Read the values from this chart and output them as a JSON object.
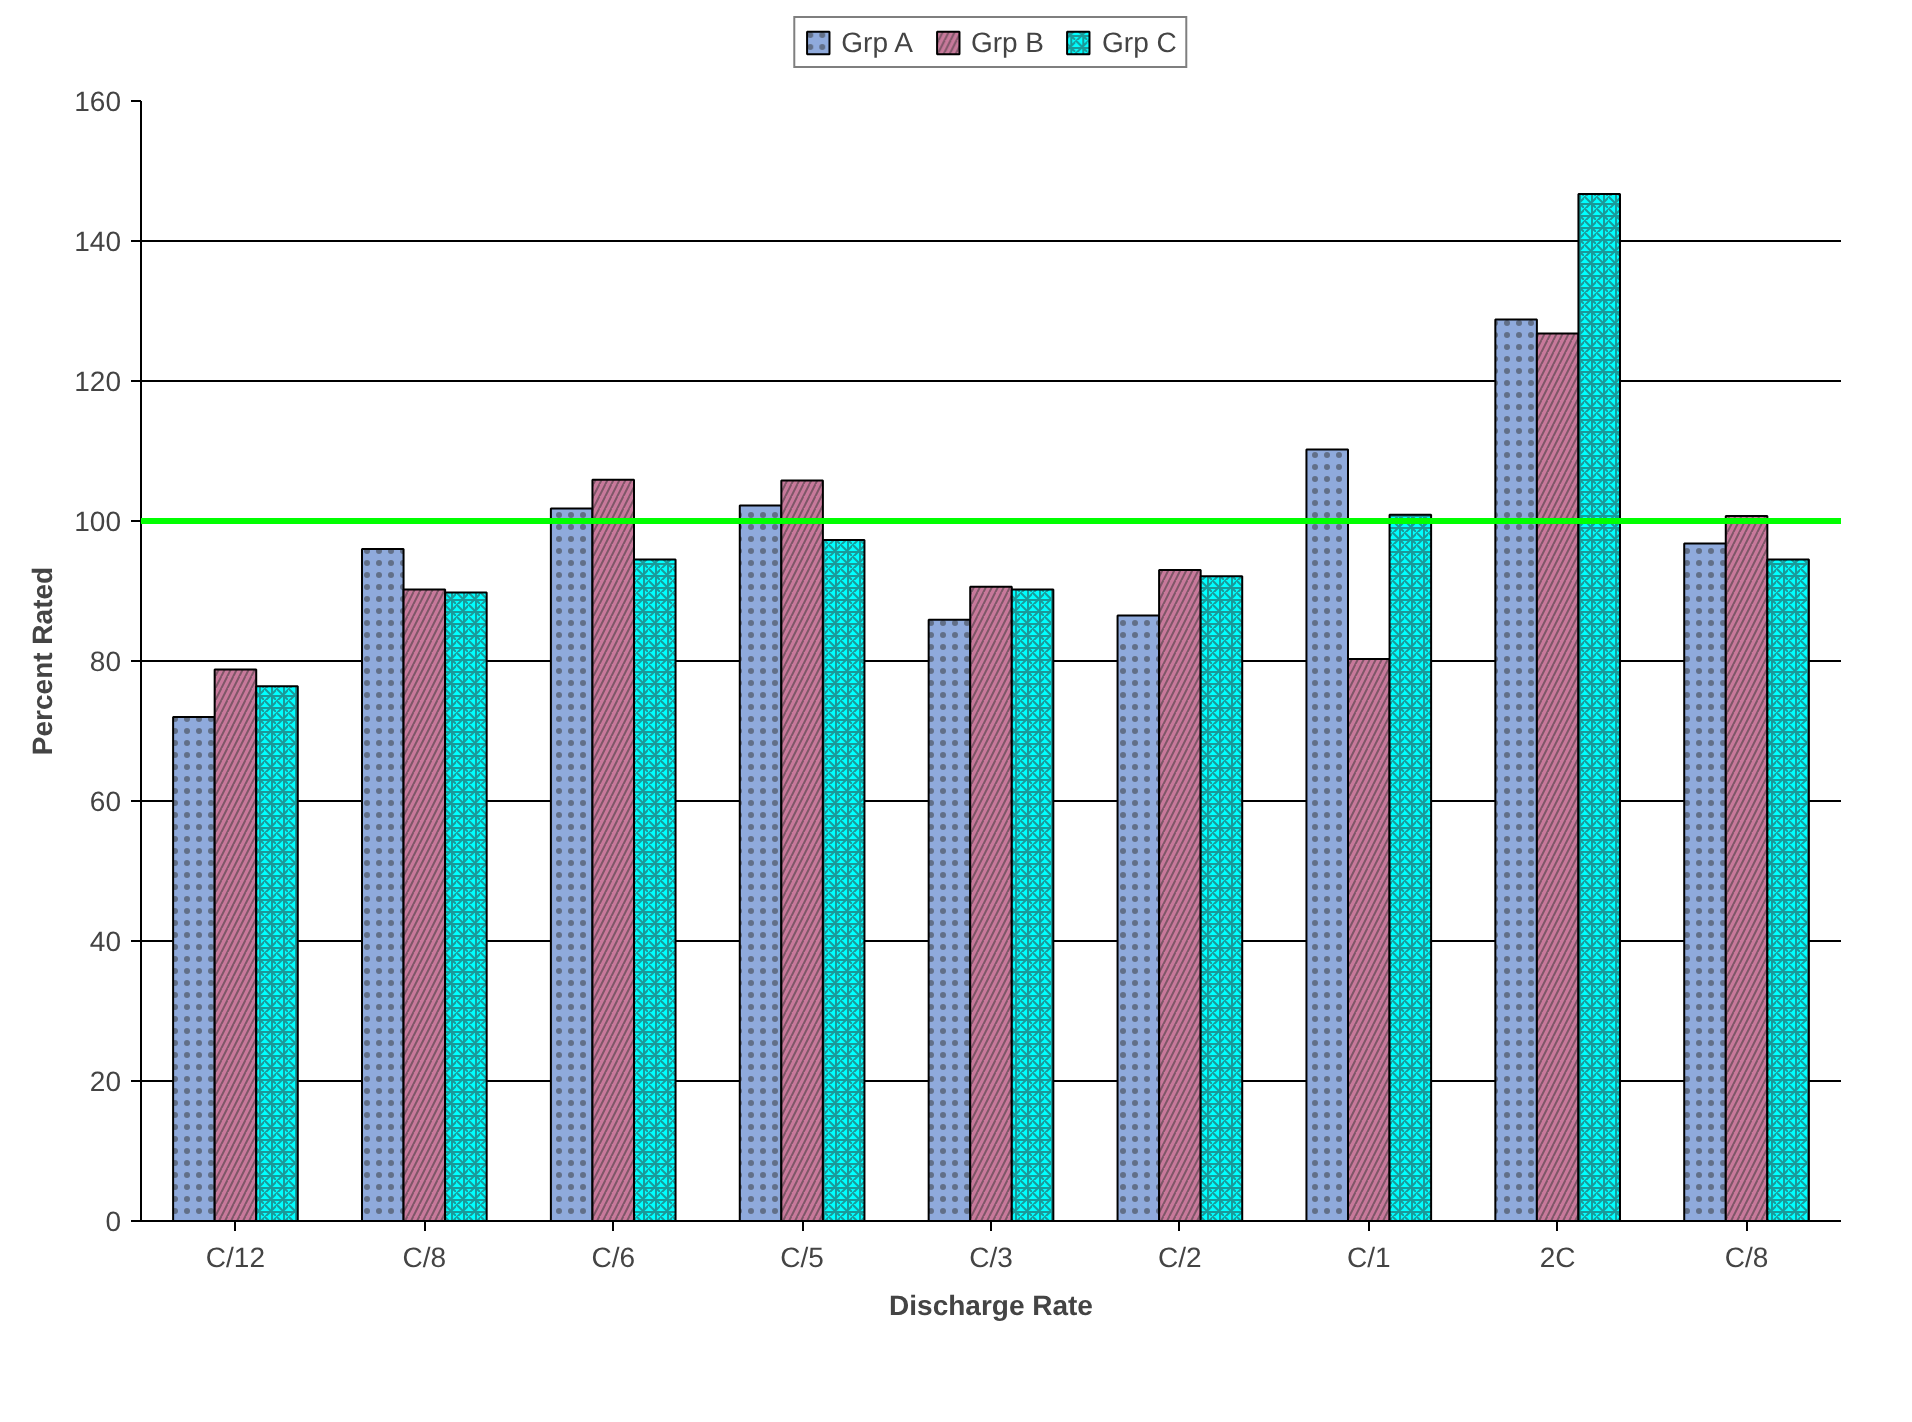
{
  "chart_data": {
    "type": "bar",
    "xlabel": "Discharge Rate",
    "ylabel": "Percent Rated",
    "categories": [
      "C/12",
      "C/8",
      "C/6",
      "C/5",
      "C/3",
      "C/2",
      "C/1",
      "2C",
      "C/8"
    ],
    "series": [
      {
        "name": "Grp A",
        "color": "#8faadc",
        "values": [
          72,
          96,
          101.8,
          102.2,
          85.9,
          86.5,
          110.2,
          128.8,
          96.8
        ]
      },
      {
        "name": "Grp B",
        "color": "#c8799b",
        "values": [
          78.8,
          90.2,
          105.9,
          105.8,
          90.6,
          93.0,
          80.3,
          126.8,
          100.7
        ]
      },
      {
        "name": "Grp C",
        "color": "#00ffff",
        "values": [
          76.4,
          89.8,
          94.5,
          97.3,
          90.2,
          92.1,
          100.9,
          146.7,
          94.5
        ]
      }
    ],
    "ylim": [
      0,
      160
    ],
    "yticks": [
      0,
      20,
      40,
      60,
      80,
      100,
      120,
      140,
      160
    ],
    "ref_lines": [
      {
        "axis": "y",
        "value": 100,
        "color": "#00ff00"
      }
    ],
    "grid": "y",
    "legend": "top"
  }
}
